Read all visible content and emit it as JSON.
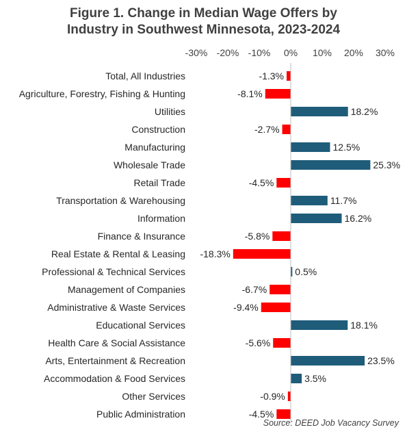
{
  "chart_data": {
    "type": "bar",
    "orientation": "horizontal",
    "title_line1": "Figure 1. Change in Median Wage Offers by",
    "title_line2": "Industry in Southwest Minnesota, 2023-2024",
    "source": "Source: DEED Job Vacancy Survey",
    "xlim": [
      -30,
      30
    ],
    "ticks": [
      -30,
      -20,
      -10,
      0,
      10,
      20,
      30
    ],
    "tick_labels": [
      "-30%",
      "-20%",
      "-10%",
      "0%",
      "10%",
      "20%",
      "30%"
    ],
    "axis_position": "top",
    "grid": false,
    "colors": {
      "positive": "#1f5c7a",
      "negative": "#ff0000",
      "axis": "#bfbfbf"
    },
    "categories": [
      "Total, All Industries",
      "Agriculture, Forestry, Fishing & Hunting",
      "Utilities",
      "Construction",
      "Manufacturing",
      "Wholesale Trade",
      "Retail Trade",
      "Transportation & Warehousing",
      "Information",
      "Finance & Insurance",
      "Real Estate & Rental & Leasing",
      "Professional & Technical Services",
      "Management of Companies",
      "Administrative & Waste Services",
      "Educational Services",
      "Health Care & Social Assistance",
      "Arts, Entertainment & Recreation",
      "Accommodation & Food Services",
      "Other Services",
      "Public Administration"
    ],
    "values": [
      -1.3,
      -8.1,
      18.2,
      -2.7,
      12.5,
      25.3,
      -4.5,
      11.7,
      16.2,
      -5.8,
      -18.3,
      0.5,
      -6.7,
      -9.4,
      18.1,
      -5.6,
      23.5,
      3.5,
      -0.9,
      -4.5
    ],
    "value_labels": [
      "-1.3%",
      "-8.1%",
      "18.2%",
      "-2.7%",
      "12.5%",
      "25.3%",
      "-4.5%",
      "11.7%",
      "16.2%",
      "-5.8%",
      "-18.3%",
      "0.5%",
      "-6.7%",
      "-9.4%",
      "18.1%",
      "-5.6%",
      "23.5%",
      "3.5%",
      "-0.9%",
      "-4.5%"
    ]
  }
}
